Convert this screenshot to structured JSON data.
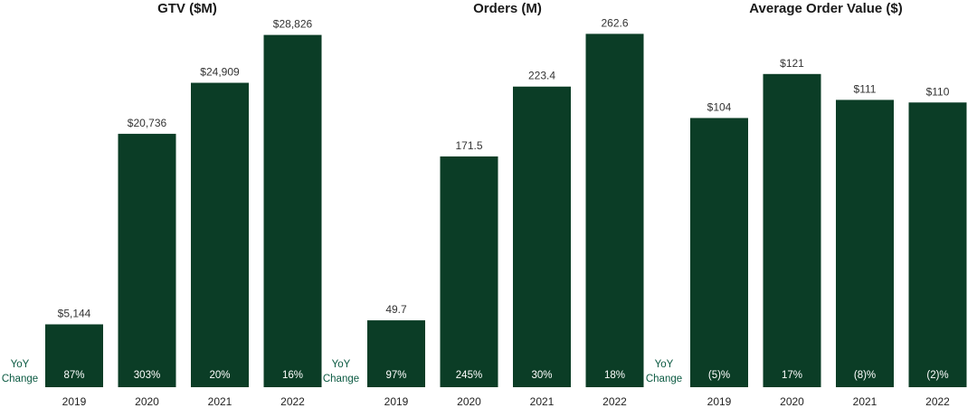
{
  "colors": {
    "bar": "#0b3d26",
    "yoy_label": "#0b5a42",
    "text": "#222222"
  },
  "yoy_label": [
    "YoY",
    "Change"
  ],
  "chart_data": [
    {
      "type": "bar",
      "title": "GTV ($M)",
      "categories": [
        "2019",
        "2020",
        "2021",
        "2022"
      ],
      "values": [
        5144,
        20736,
        24909,
        28826
      ],
      "value_labels": [
        "$5,144",
        "$20,736",
        "$24,909",
        "$28,826"
      ],
      "yoy_change": [
        "87%",
        "303%",
        "20%",
        "16%"
      ],
      "ylim": [
        0,
        30500
      ]
    },
    {
      "type": "bar",
      "title": "Orders (M)",
      "categories": [
        "2019",
        "2020",
        "2021",
        "2022"
      ],
      "values": [
        49.7,
        171.5,
        223.4,
        262.6
      ],
      "value_labels": [
        "49.7",
        "171.5",
        "223.4",
        "262.6"
      ],
      "yoy_change": [
        "97%",
        "245%",
        "30%",
        "18%"
      ],
      "ylim": [
        0,
        277
      ]
    },
    {
      "type": "bar",
      "title": "Average Order Value ($)",
      "categories": [
        "2019",
        "2020",
        "2021",
        "2022"
      ],
      "values": [
        104,
        121,
        111,
        110
      ],
      "value_labels": [
        "$104",
        "$121",
        "$111",
        "$110"
      ],
      "yoy_change": [
        "(5)%",
        "17%",
        "(8)%",
        "(2)%"
      ],
      "ylim": [
        0,
        144
      ]
    }
  ]
}
